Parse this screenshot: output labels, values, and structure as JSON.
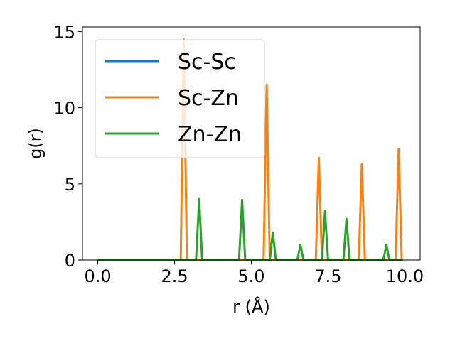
{
  "chart_data": {
    "type": "line",
    "title": "",
    "xlabel": "r (Å)",
    "ylabel": "g(r)",
    "xlim": [
      -0.5,
      10.5
    ],
    "ylim": [
      0,
      15.3
    ],
    "xticks": [
      0,
      2.5,
      5,
      7.5,
      10
    ],
    "xtick_labels": [
      "0.0",
      "2.5",
      "5.0",
      "7.5",
      "10.0"
    ],
    "yticks": [
      0,
      5,
      10,
      15
    ],
    "ytick_labels": [
      "0",
      "5",
      "10",
      "15"
    ],
    "grid": false,
    "legend_position": "top-left",
    "series": [
      {
        "name": "Sc-Sc",
        "color": "#1f77b4",
        "x": [
          0.0,
          9.9
        ],
        "y": [
          0,
          0
        ]
      },
      {
        "name": "Sc-Zn",
        "color": "#ff7f0e",
        "x": [
          0.0,
          2.7,
          2.8,
          2.9,
          5.4,
          5.5,
          5.6,
          7.1,
          7.2,
          7.3,
          8.5,
          8.6,
          8.7,
          9.7,
          9.8,
          9.9
        ],
        "y": [
          0,
          0,
          14.5,
          0,
          0,
          11.5,
          0,
          0,
          6.7,
          0,
          0,
          6.3,
          0,
          0,
          7.3,
          0
        ]
      },
      {
        "name": "Zn-Zn",
        "color": "#2ca02c",
        "x": [
          0.0,
          3.2,
          3.3,
          3.4,
          4.6,
          4.7,
          4.8,
          5.6,
          5.7,
          5.8,
          6.5,
          6.6,
          6.7,
          7.3,
          7.4,
          7.5,
          8.0,
          8.1,
          8.2,
          9.3,
          9.4,
          9.5,
          9.9
        ],
        "y": [
          0,
          0,
          4.0,
          0,
          0,
          3.95,
          0,
          0,
          1.8,
          0,
          0,
          1.0,
          0,
          0,
          3.2,
          0,
          0,
          2.7,
          0,
          0,
          1.0,
          0,
          0
        ]
      }
    ]
  }
}
